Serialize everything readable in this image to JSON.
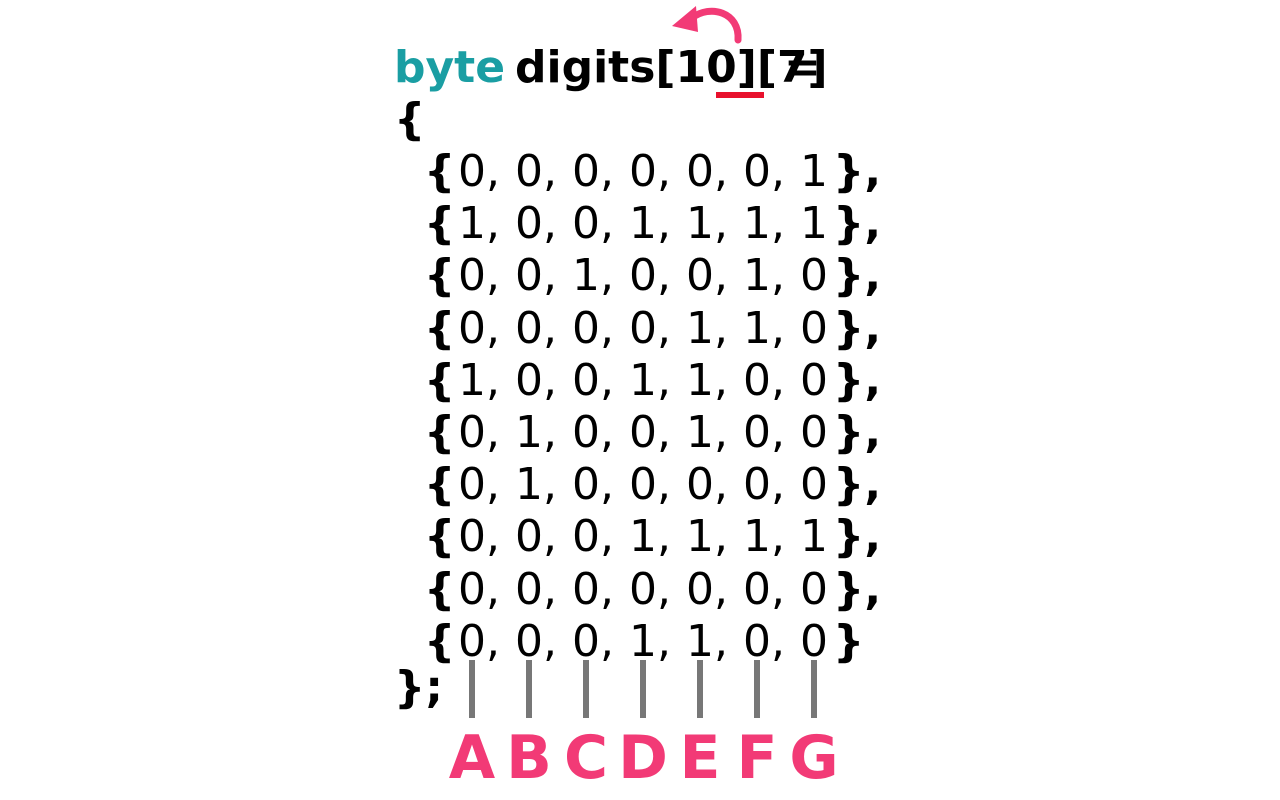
{
  "declaration": {
    "keyword": "byte",
    "name": "digits[10][7]",
    "equals": "=",
    "open_brace": "{",
    "close": "};"
  },
  "rows": [
    [
      "0",
      "0",
      "0",
      "0",
      "0",
      "0",
      "1"
    ],
    [
      "1",
      "0",
      "0",
      "1",
      "1",
      "1",
      "1"
    ],
    [
      "0",
      "0",
      "1",
      "0",
      "0",
      "1",
      "0"
    ],
    [
      "0",
      "0",
      "0",
      "0",
      "1",
      "1",
      "0"
    ],
    [
      "1",
      "0",
      "0",
      "1",
      "1",
      "0",
      "0"
    ],
    [
      "0",
      "1",
      "0",
      "0",
      "1",
      "0",
      "0"
    ],
    [
      "0",
      "1",
      "0",
      "0",
      "0",
      "0",
      "0"
    ],
    [
      "0",
      "0",
      "0",
      "1",
      "1",
      "1",
      "1"
    ],
    [
      "0",
      "0",
      "0",
      "0",
      "0",
      "0",
      "0"
    ],
    [
      "0",
      "0",
      "0",
      "1",
      "1",
      "0",
      "0"
    ]
  ],
  "row_open": "{",
  "row_close": "},",
  "row_close_last": "}",
  "column_labels": [
    "A",
    "B",
    "C",
    "D",
    "E",
    "F",
    "G"
  ],
  "colors": {
    "keyword": "#1a9ea3",
    "accent": "#f23a76",
    "underline": "#e8112d",
    "tick": "#777777"
  }
}
